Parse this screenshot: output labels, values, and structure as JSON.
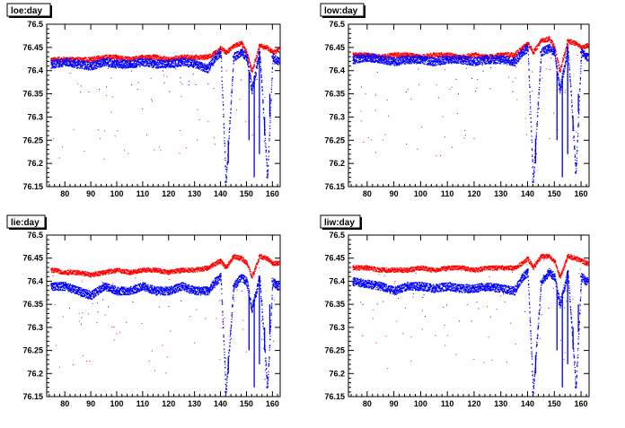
{
  "colors": {
    "series_1": "#ff0000",
    "series_2": "#0000ff",
    "frame": "#000000",
    "background": "#ffffff"
  },
  "chart_data": [
    {
      "type": "scatter",
      "title": "loe:day",
      "xlim": [
        73,
        163
      ],
      "ylim": [
        76.15,
        76.5
      ],
      "x_ticks": [
        80,
        90,
        100,
        110,
        120,
        130,
        140,
        150,
        160
      ],
      "y_ticks": [
        76.15,
        76.2,
        76.25,
        76.3,
        76.35,
        76.4,
        76.45,
        76.5
      ],
      "y_tick_labels": [
        "76.15",
        "76.2",
        "76.25",
        "76.3",
        "76.35",
        "76.4",
        "76.45",
        "76.5"
      ],
      "series": [
        {
          "color": "#ff0000",
          "x": [
            75,
            80,
            85,
            90,
            95,
            100,
            105,
            110,
            115,
            120,
            125,
            130,
            135,
            138,
            140,
            142,
            145,
            148,
            150,
            152,
            155,
            158,
            160,
            162
          ],
          "y": [
            76.425,
            76.425,
            76.425,
            76.425,
            76.43,
            76.43,
            76.425,
            76.43,
            76.43,
            76.425,
            76.43,
            76.43,
            76.43,
            76.44,
            76.45,
            76.44,
            76.455,
            76.46,
            76.44,
            76.4,
            76.455,
            76.45,
            76.44,
            76.445
          ]
        },
        {
          "color": "#0000ff",
          "x": [
            75,
            80,
            85,
            90,
            95,
            100,
            105,
            110,
            115,
            120,
            125,
            130,
            135,
            138,
            140,
            142,
            145,
            148,
            150,
            152,
            155,
            158,
            160,
            162
          ],
          "y": [
            76.415,
            76.42,
            76.415,
            76.41,
            76.42,
            76.415,
            76.415,
            76.42,
            76.415,
            76.415,
            76.42,
            76.415,
            76.405,
            76.43,
            76.44,
            76.16,
            76.43,
            76.44,
            76.43,
            76.36,
            76.44,
            76.17,
            76.43,
            76.42
          ]
        }
      ]
    },
    {
      "type": "scatter",
      "title": "low:day",
      "xlim": [
        73,
        163
      ],
      "ylim": [
        76.15,
        76.5
      ],
      "x_ticks": [
        80,
        90,
        100,
        110,
        120,
        130,
        140,
        150,
        160
      ],
      "y_ticks": [
        76.15,
        76.2,
        76.25,
        76.3,
        76.35,
        76.4,
        76.45,
        76.5
      ],
      "y_tick_labels": [
        "76.15",
        "76.2",
        "76.25",
        "76.3",
        "76.35",
        "76.4",
        "76.45",
        "76.5"
      ],
      "series": [
        {
          "color": "#ff0000",
          "x": [
            75,
            80,
            85,
            90,
            95,
            100,
            105,
            110,
            115,
            120,
            125,
            130,
            135,
            138,
            140,
            142,
            145,
            148,
            150,
            152,
            155,
            158,
            160,
            162
          ],
          "y": [
            76.435,
            76.435,
            76.43,
            76.435,
            76.435,
            76.43,
            76.435,
            76.435,
            76.43,
            76.435,
            76.43,
            76.435,
            76.435,
            76.45,
            76.46,
            76.44,
            76.465,
            76.47,
            76.45,
            76.4,
            76.465,
            76.46,
            76.45,
            76.455
          ]
        },
        {
          "color": "#0000ff",
          "x": [
            75,
            80,
            85,
            90,
            95,
            100,
            105,
            110,
            115,
            120,
            125,
            130,
            135,
            138,
            140,
            142,
            145,
            148,
            150,
            152,
            155,
            158,
            160,
            162
          ],
          "y": [
            76.425,
            76.43,
            76.425,
            76.42,
            76.425,
            76.425,
            76.42,
            76.425,
            76.425,
            76.42,
            76.425,
            76.425,
            76.42,
            76.44,
            76.45,
            76.16,
            76.44,
            76.45,
            76.44,
            76.36,
            76.45,
            76.18,
            76.44,
            76.43
          ]
        }
      ]
    },
    {
      "type": "scatter",
      "title": "lie:day",
      "xlim": [
        73,
        163
      ],
      "ylim": [
        76.15,
        76.5
      ],
      "x_ticks": [
        80,
        90,
        100,
        110,
        120,
        130,
        140,
        150,
        160
      ],
      "y_ticks": [
        76.15,
        76.2,
        76.25,
        76.3,
        76.35,
        76.4,
        76.45,
        76.5
      ],
      "y_tick_labels": [
        "76.15",
        "76.2",
        "76.25",
        "76.3",
        "76.35",
        "76.4",
        "76.45",
        "76.5"
      ],
      "series": [
        {
          "color": "#ff0000",
          "x": [
            75,
            80,
            85,
            90,
            95,
            100,
            105,
            110,
            115,
            120,
            125,
            130,
            135,
            138,
            140,
            142,
            145,
            148,
            150,
            152,
            155,
            158,
            160,
            162
          ],
          "y": [
            76.425,
            76.42,
            76.42,
            76.415,
            76.42,
            76.425,
            76.42,
            76.425,
            76.425,
            76.42,
            76.425,
            76.425,
            76.43,
            76.44,
            76.445,
            76.43,
            76.455,
            76.45,
            76.44,
            76.41,
            76.455,
            76.45,
            76.44,
            76.44
          ]
        },
        {
          "color": "#0000ff",
          "x": [
            75,
            80,
            85,
            90,
            95,
            100,
            105,
            110,
            115,
            120,
            125,
            130,
            135,
            138,
            140,
            142,
            145,
            148,
            150,
            152,
            155,
            158,
            160,
            162
          ],
          "y": [
            76.39,
            76.39,
            76.38,
            76.37,
            76.39,
            76.38,
            76.38,
            76.39,
            76.38,
            76.38,
            76.39,
            76.38,
            76.38,
            76.4,
            76.41,
            76.16,
            76.39,
            76.41,
            76.4,
            76.34,
            76.41,
            76.17,
            76.4,
            76.39
          ]
        }
      ]
    },
    {
      "type": "scatter",
      "title": "liw:day",
      "xlim": [
        73,
        163
      ],
      "ylim": [
        76.15,
        76.5
      ],
      "x_ticks": [
        80,
        90,
        100,
        110,
        120,
        130,
        140,
        150,
        160
      ],
      "y_ticks": [
        76.15,
        76.2,
        76.25,
        76.3,
        76.35,
        76.4,
        76.45,
        76.5
      ],
      "y_tick_labels": [
        "76.15",
        "76.2",
        "76.25",
        "76.3",
        "76.35",
        "76.4",
        "76.45",
        "76.5"
      ],
      "series": [
        {
          "color": "#ff0000",
          "x": [
            75,
            80,
            85,
            90,
            95,
            100,
            105,
            110,
            115,
            120,
            125,
            130,
            135,
            138,
            140,
            142,
            145,
            148,
            150,
            152,
            155,
            158,
            160,
            162
          ],
          "y": [
            76.43,
            76.43,
            76.425,
            76.425,
            76.425,
            76.43,
            76.425,
            76.43,
            76.43,
            76.425,
            76.43,
            76.43,
            76.43,
            76.44,
            76.45,
            76.43,
            76.455,
            76.455,
            76.445,
            76.41,
            76.455,
            76.45,
            76.445,
            76.44
          ]
        },
        {
          "color": "#0000ff",
          "x": [
            75,
            80,
            85,
            90,
            95,
            100,
            105,
            110,
            115,
            120,
            125,
            130,
            135,
            138,
            140,
            142,
            145,
            148,
            150,
            152,
            155,
            158,
            160,
            162
          ],
          "y": [
            76.4,
            76.395,
            76.39,
            76.38,
            76.39,
            76.39,
            76.385,
            76.39,
            76.385,
            76.385,
            76.39,
            76.385,
            76.38,
            76.41,
            76.42,
            76.16,
            76.4,
            76.42,
            76.41,
            76.35,
            76.42,
            76.17,
            76.41,
            76.4
          ]
        }
      ]
    }
  ]
}
